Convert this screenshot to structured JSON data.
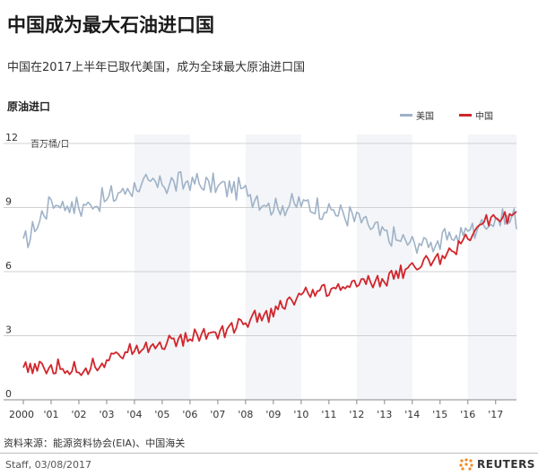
{
  "title": "中国成为最大石油进口国",
  "subtitle": "中国在2017上半年已取代美国，成为全球最大原油进口国",
  "chart_data": {
    "type": "line",
    "ylabel": "原油进口",
    "unit": "百万桶/日",
    "ylim": [
      0,
      12
    ],
    "yticks": [
      0,
      3,
      6,
      9,
      12
    ],
    "xlim": [
      2000,
      2017.75
    ],
    "xtick_labels": [
      "2000",
      "'01",
      "'02",
      "'03",
      "'04",
      "'05",
      "'06",
      "'07",
      "'08",
      "'09",
      "'10",
      "'11",
      "'12",
      "'13",
      "'14",
      "'15",
      "'16",
      "'17"
    ],
    "x_annual": [
      2000,
      2001,
      2002,
      2003,
      2004,
      2005,
      2006,
      2007,
      2008,
      2009,
      2010,
      2011,
      2012,
      2013,
      2014,
      2015,
      2016,
      2017
    ],
    "legend_position": "top-right",
    "grid": "horizontal",
    "series": [
      {
        "name": "美国",
        "color": "#9fb2c7",
        "values": [
          7.2,
          9.3,
          9.0,
          9.4,
          10.0,
          10.1,
          10.2,
          10.0,
          9.8,
          9.0,
          9.2,
          8.9,
          8.5,
          7.7,
          7.3,
          7.4,
          7.9,
          8.5
        ]
      },
      {
        "name": "中国",
        "color": "#d0262c",
        "values": [
          1.4,
          1.5,
          1.4,
          1.8,
          2.5,
          2.6,
          2.9,
          3.2,
          3.6,
          4.1,
          4.8,
          5.1,
          5.4,
          5.6,
          6.2,
          6.7,
          7.6,
          8.6
        ]
      }
    ]
  },
  "source": "资料来源：能源资料协会(EIA)、中国海关",
  "credit": "Staff, 03/08/2017",
  "logo_text": "REUTERS"
}
